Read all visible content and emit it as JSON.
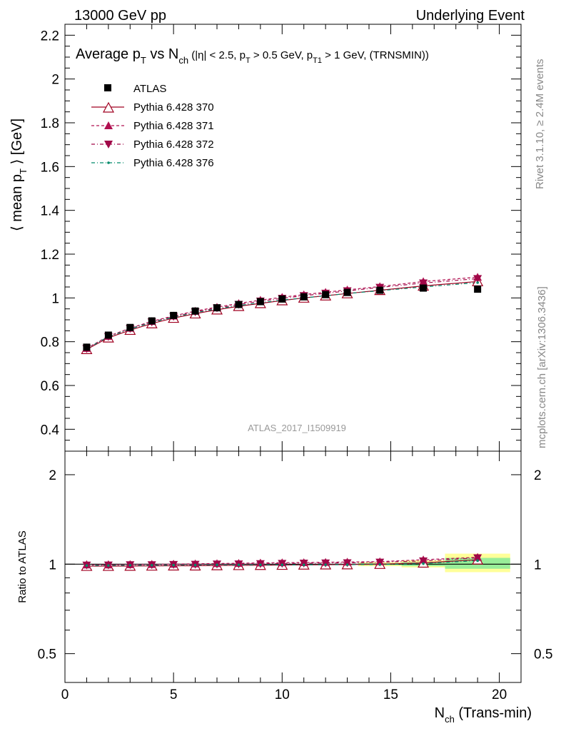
{
  "header": {
    "left": "13000 GeV pp",
    "right": "Underlying Event"
  },
  "side_labels": {
    "rivet": "Rivet 3.1.10, ≥ 2.4M events",
    "mcplots": "mcplots.cern.ch [arXiv:1306.3436]"
  },
  "watermark": "ATLAS_2017_I1509919",
  "title": {
    "main": "Average p",
    "main_sub": "T",
    "vs": " vs N",
    "vs_sub": "ch",
    "cuts_a": " (|η| < 2.5, p",
    "cuts_a_sub": "T",
    "cuts_b": " > 0.5 GeV, p",
    "cuts_b_sub": "T1",
    "cuts_c": " > 1 GeV, (TRNSMIN))"
  },
  "chart_data": {
    "type": "line",
    "x_title": "N",
    "x_title_sub": "ch",
    "x_title_rest": " (Trans-min)",
    "y_title_main": "⟨ mean p",
    "y_title_sub": "T",
    "y_title_rest": " ⟩ [GeV]",
    "ratio_ylabel": "Ratio to ATLAS",
    "xlim": [
      0,
      21
    ],
    "ylim": [
      0.3,
      2.25
    ],
    "ratio_ylim": [
      0.4,
      2.4
    ],
    "x_ticks": [
      0,
      5,
      10,
      15,
      20
    ],
    "y_ticks": [
      0.4,
      0.6,
      0.8,
      1,
      1.2,
      1.4,
      1.6,
      1.8,
      2,
      2.2
    ],
    "ratio_ticks": [
      0.5,
      1,
      2
    ],
    "ratio_bands": [
      {
        "x0": 13.5,
        "x1": 15.5,
        "yellow": [
          0.985,
          1.015
        ],
        "green": [
          0.993,
          1.007
        ]
      },
      {
        "x0": 15.5,
        "x1": 17.5,
        "yellow": [
          0.975,
          1.03
        ],
        "green": [
          0.985,
          1.015
        ]
      },
      {
        "x0": 17.5,
        "x1": 20.5,
        "yellow": [
          0.94,
          1.085
        ],
        "green": [
          0.965,
          1.05
        ]
      }
    ],
    "series": [
      {
        "name": "ATLAS",
        "style": "data",
        "color": "#000000",
        "x": [
          1,
          2,
          3,
          4,
          5,
          6,
          7,
          8,
          9,
          10,
          11,
          12,
          13,
          14.5,
          16.5,
          19
        ],
        "values": [
          0.775,
          0.83,
          0.865,
          0.895,
          0.92,
          0.94,
          0.955,
          0.97,
          0.983,
          0.995,
          1.005,
          1.015,
          1.025,
          1.035,
          1.045,
          1.04
        ]
      },
      {
        "name": "Pythia 6.428 370",
        "style": "open-triangle-up",
        "color": "#a00020",
        "x": [
          1,
          2,
          3,
          4,
          5,
          6,
          7,
          8,
          9,
          10,
          11,
          12,
          13,
          14.5,
          16.5,
          19
        ],
        "values": [
          0.765,
          0.818,
          0.853,
          0.883,
          0.908,
          0.928,
          0.946,
          0.962,
          0.975,
          0.988,
          1.0,
          1.01,
          1.02,
          1.035,
          1.055,
          1.075
        ],
        "ratio": [
          0.985,
          0.985,
          0.986,
          0.987,
          0.988,
          0.988,
          0.99,
          0.991,
          0.992,
          0.993,
          0.995,
          0.996,
          0.997,
          1.0,
          1.01,
          1.035
        ]
      },
      {
        "name": "Pythia 6.428 371",
        "style": "filled-triangle-up",
        "color": "#b01050",
        "x": [
          1,
          2,
          3,
          4,
          5,
          6,
          7,
          8,
          9,
          10,
          11,
          12,
          13,
          14.5,
          16.5,
          19
        ],
        "values": [
          0.77,
          0.825,
          0.862,
          0.893,
          0.918,
          0.94,
          0.958,
          0.975,
          0.99,
          1.003,
          1.015,
          1.026,
          1.037,
          1.052,
          1.075,
          1.095
        ],
        "ratio": [
          0.995,
          0.995,
          0.997,
          0.998,
          1.0,
          1.003,
          1.005,
          1.007,
          1.01,
          1.012,
          1.013,
          1.015,
          1.017,
          1.02,
          1.035,
          1.055
        ]
      },
      {
        "name": "Pythia 6.428 372",
        "style": "filled-triangle-down",
        "color": "#a00848",
        "x": [
          1,
          2,
          3,
          4,
          5,
          6,
          7,
          8,
          9,
          10,
          11,
          12,
          13,
          14.5,
          16.5,
          19
        ],
        "values": [
          0.768,
          0.823,
          0.86,
          0.89,
          0.915,
          0.936,
          0.954,
          0.97,
          0.985,
          0.998,
          1.01,
          1.021,
          1.032,
          1.048,
          1.068,
          1.088
        ],
        "ratio": [
          0.992,
          0.993,
          0.995,
          0.995,
          0.997,
          0.998,
          1.0,
          1.001,
          1.003,
          1.005,
          1.007,
          1.009,
          1.01,
          1.015,
          1.025,
          1.05
        ]
      },
      {
        "name": "Pythia 6.428 376",
        "style": "dot",
        "color": "#008a6a",
        "x": [
          1,
          2,
          3,
          4,
          5,
          6,
          7,
          8,
          9,
          10,
          11,
          12,
          13,
          14.5,
          16.5,
          19
        ],
        "values": [
          0.768,
          0.822,
          0.858,
          0.888,
          0.912,
          0.932,
          0.95,
          0.965,
          0.978,
          0.99,
          1.0,
          1.01,
          1.02,
          1.033,
          1.05,
          1.07
        ],
        "ratio": [
          0.99,
          0.99,
          0.992,
          0.992,
          0.993,
          0.993,
          0.995,
          0.995,
          0.995,
          0.995,
          0.995,
          0.996,
          0.996,
          0.998,
          1.005,
          1.028
        ]
      }
    ]
  }
}
